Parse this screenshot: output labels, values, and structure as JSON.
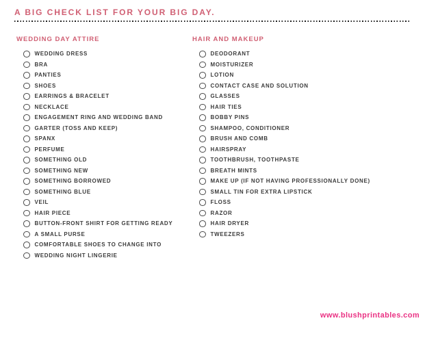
{
  "page": {
    "title": "A BIG CHECK LIST FOR YOUR BIG DAY.",
    "footer_url": "www.blushprintables.com"
  },
  "colors": {
    "heading_pink": "#d05f73",
    "footer_pink": "#ea3183",
    "item_text": "#3b3b3b",
    "dot_line": "#1c1c1c",
    "circle_border": "#4a4a4a",
    "background": "#ffffff"
  },
  "columns": [
    {
      "header": "WEDDING DAY ATTIRE",
      "items": [
        "WEDDING DRESS",
        "BRA",
        "PANTIES",
        "SHOES",
        "EARRINGS & BRACELET",
        "NECKLACE",
        "ENGAGEMENT RING AND WEDDING BAND",
        "GARTER (TOSS AND KEEP)",
        "SPANX",
        "PERFUME",
        "SOMETHING OLD",
        "SOMETHING NEW",
        "SOMETHING BORROWED",
        "SOMETHING BLUE",
        "VEIL",
        "HAIR PIECE",
        "BUTTON-FRONT SHIRT FOR GETTING READY",
        "A SMALL PURSE",
        "COMFORTABLE SHOES TO CHANGE INTO",
        "WEDDING NIGHT LINGERIE"
      ]
    },
    {
      "header": "HAIR AND MAKEUP",
      "items": [
        "DEODORANT",
        "MOISTURIZER",
        "LOTION",
        "CONTACT CASE AND SOLUTION",
        "GLASSES",
        "HAIR TIES",
        "BOBBY PINS",
        "SHAMPOO, CONDITIONER",
        "BRUSH AND COMB",
        "HAIRSPRAY",
        "TOOTHBRUSH, TOOTHPASTE",
        "BREATH MINTS",
        "MAKE UP (IF NOT HAVING PROFESSIONALLY DONE)",
        "SMALL TIN FOR EXTRA LIPSTICK",
        "FLOSS",
        "RAZOR",
        "HAIR DRYER",
        "TWEEZERS"
      ]
    }
  ]
}
